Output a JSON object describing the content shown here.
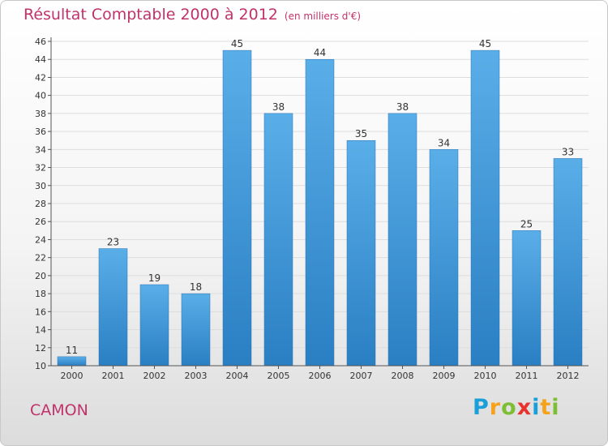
{
  "header": {
    "title": "Résultat Comptable 2000 à 2012",
    "subtitle": "(en milliers d'€)"
  },
  "footer": {
    "place": "CAMON",
    "brand": "Proxiti",
    "brand_letters": [
      {
        "ch": "P",
        "color": "#1aa0d8"
      },
      {
        "ch": "r",
        "color": "#f6a21a"
      },
      {
        "ch": "o",
        "color": "#7dbe35"
      },
      {
        "ch": "x",
        "color": "#e8322e"
      },
      {
        "ch": "i",
        "color": "#1aa0d8"
      },
      {
        "ch": "t",
        "color": "#f6a21a"
      },
      {
        "ch": "i",
        "color": "#7dbe35"
      }
    ]
  },
  "colors": {
    "accent": "#c0336a",
    "bar_light": "#5aaee8",
    "bar_dark": "#2a7fc3"
  },
  "chart_data": {
    "type": "bar",
    "title": "Résultat Comptable 2000 à 2012",
    "subtitle": "(en milliers d'€)",
    "xlabel": "",
    "ylabel": "",
    "categories": [
      "2000",
      "2001",
      "2002",
      "2003",
      "2004",
      "2005",
      "2006",
      "2007",
      "2008",
      "2009",
      "2010",
      "2011",
      "2012"
    ],
    "values": [
      11,
      23,
      19,
      18,
      45,
      38,
      44,
      35,
      38,
      34,
      45,
      25,
      33
    ],
    "ylim": [
      10,
      46
    ],
    "yticks": [
      10,
      12,
      14,
      16,
      18,
      20,
      22,
      24,
      26,
      28,
      30,
      32,
      34,
      36,
      38,
      40,
      42,
      44,
      46
    ],
    "grid": true,
    "data_labels": true
  }
}
